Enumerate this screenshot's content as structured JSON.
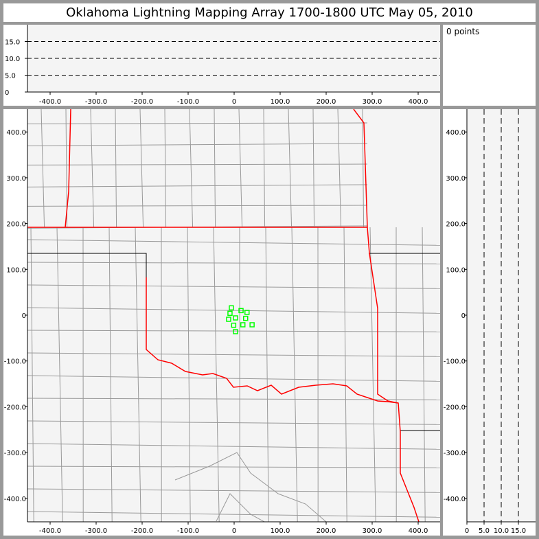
{
  "title": "Oklahoma Lightning Mapping Array   1700-1800 UTC  May 05, 2010",
  "points_label": "0 points",
  "chart_data": [
    {
      "type": "line",
      "panel": "altitude-vs-east-west",
      "xlim": [
        -450,
        450
      ],
      "ylim": [
        0,
        20
      ],
      "x_ticks": [
        "-400.0",
        "-300.0",
        "-200.0",
        "-100.0",
        "0",
        "100.0",
        "200.0",
        "300.0",
        "400.0"
      ],
      "y_ticks": [
        "0",
        "5.0",
        "10.0",
        "15.0"
      ],
      "dashed_reference_lines": [
        5,
        10,
        15
      ],
      "series": []
    },
    {
      "type": "scatter",
      "panel": "plan-view-map",
      "xlim": [
        -450,
        450
      ],
      "ylim": [
        -450,
        450
      ],
      "x_ticks": [
        "-400.0",
        "-300.0",
        "-200.0",
        "-100.0",
        "0",
        "100.0",
        "200.0",
        "300.0",
        "400.0"
      ],
      "y_ticks": [
        "400.0",
        "300.0",
        "200.0",
        "100.0",
        "0",
        "-100.0",
        "-200.0",
        "-300.0",
        "-400.0"
      ],
      "stations": [
        [
          -6,
          16
        ],
        [
          -9,
          4
        ],
        [
          -12,
          -9
        ],
        [
          3,
          -6
        ],
        [
          15,
          10
        ],
        [
          28,
          6
        ],
        [
          25,
          -7
        ],
        [
          -1,
          -22
        ],
        [
          19,
          -21
        ],
        [
          39,
          -21
        ],
        [
          3,
          -36
        ]
      ],
      "station_color": "#00ff00",
      "state_border_color": "#ff0000",
      "county_border_color": "#999999"
    },
    {
      "type": "line",
      "panel": "north-south-vs-altitude",
      "xlim": [
        0,
        20
      ],
      "ylim": [
        -450,
        450
      ],
      "x_ticks": [
        "0",
        "5.0",
        "10.0",
        "15.0"
      ],
      "y_ticks": [
        "400.0",
        "300.0",
        "200.0",
        "100.0",
        "0",
        "-100.0",
        "-200.0",
        "-300.0",
        "-400.0"
      ],
      "dashed_reference_lines": [
        5,
        10,
        15
      ],
      "series": []
    }
  ]
}
